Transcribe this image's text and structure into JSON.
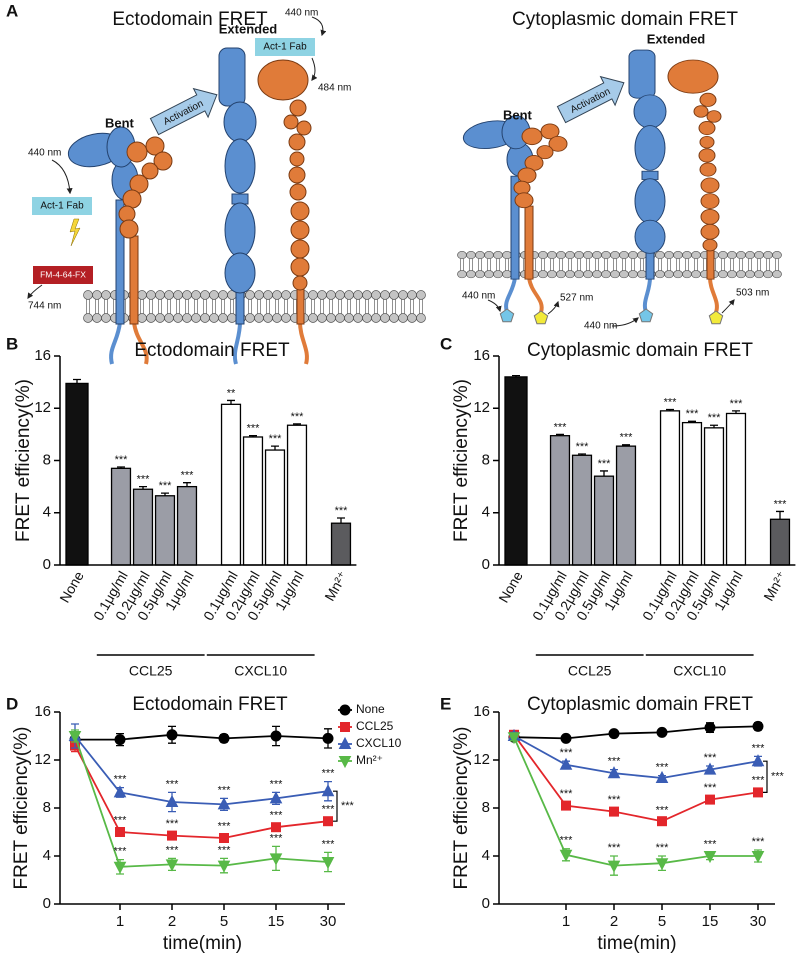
{
  "diagram": {
    "label": "A",
    "left": {
      "title": "Ectodomain FRET",
      "bent": "Bent",
      "extended": "Extended",
      "activation": "Activation",
      "excitation_bent": "440 nm",
      "fab_bent": "Act-1 Fab",
      "acceptor": "FM-4-64-FX",
      "emission_bent": "744 nm",
      "excitation_extended": "440 nm",
      "fab_extended": "Act-1 Fab",
      "emission_extended": "484 nm"
    },
    "right": {
      "title": "Cytoplasmic domain FRET",
      "bent": "Bent",
      "extended": "Extended",
      "activation": "Activation",
      "excitation_bent": "440 nm",
      "emission_bent": "527 nm",
      "excitation_extended": "440 nm",
      "emission_extended": "503 nm"
    }
  },
  "chart_data": [
    {
      "type": "bar",
      "panel": "B",
      "title": "Ectodomain FRET",
      "ylabel": "FRET efficiency(%)",
      "ylim": [
        0,
        16
      ],
      "yticks": [
        0,
        4,
        8,
        12,
        16
      ],
      "groups": [
        {
          "categories": [
            "None"
          ],
          "values": [
            13.9
          ],
          "errors": [
            0.3
          ],
          "color": "#111111"
        },
        {
          "name": "CCL25",
          "categories": [
            "0.1μg/ml",
            "0.2μg/ml",
            "0.5μg/ml",
            "1μg/ml"
          ],
          "values": [
            7.4,
            5.8,
            5.3,
            6.0
          ],
          "errors": [
            0.1,
            0.2,
            0.2,
            0.3
          ],
          "labels": [
            "***",
            "***",
            "***",
            "***"
          ],
          "color": "#9b9da6"
        },
        {
          "name": "CXCL10",
          "categories": [
            "0.1μg/ml",
            "0.2μg/ml",
            "0.5μg/ml",
            "1μg/ml"
          ],
          "values": [
            12.3,
            9.8,
            8.8,
            10.7
          ],
          "errors": [
            0.3,
            0.1,
            0.3,
            0.1
          ],
          "labels": [
            "**",
            "***",
            "***",
            "***"
          ],
          "color": "#ffffff"
        },
        {
          "categories": [
            "Mn²⁺"
          ],
          "values": [
            3.2
          ],
          "errors": [
            0.4
          ],
          "labels": [
            "***"
          ],
          "color": "#5b5b5e"
        }
      ]
    },
    {
      "type": "bar",
      "panel": "C",
      "title": "Cytoplasmic domain FRET",
      "ylabel": "FRET efficiency(%)",
      "ylim": [
        0,
        16
      ],
      "yticks": [
        0,
        4,
        8,
        12,
        16
      ],
      "groups": [
        {
          "categories": [
            "None"
          ],
          "values": [
            14.4
          ],
          "errors": [
            0.1
          ],
          "color": "#111111"
        },
        {
          "name": "CCL25",
          "categories": [
            "0.1μg/ml",
            "0.2μg/ml",
            "0.5μg/ml",
            "1μg/ml"
          ],
          "values": [
            9.9,
            8.4,
            6.8,
            9.1
          ],
          "errors": [
            0.1,
            0.1,
            0.4,
            0.1
          ],
          "labels": [
            "***",
            "***",
            "***",
            "***"
          ],
          "color": "#9b9da6"
        },
        {
          "name": "CXCL10",
          "categories": [
            "0.1μg/ml",
            "0.2μg/ml",
            "0.5μg/ml",
            "1μg/ml"
          ],
          "values": [
            11.8,
            10.9,
            10.5,
            11.6
          ],
          "errors": [
            0.1,
            0.1,
            0.2,
            0.2
          ],
          "labels": [
            "***",
            "***",
            "***",
            "***"
          ],
          "color": "#ffffff"
        },
        {
          "categories": [
            "Mn²⁺"
          ],
          "values": [
            3.5
          ],
          "errors": [
            0.6
          ],
          "labels": [
            "***"
          ],
          "color": "#5b5b5e"
        }
      ]
    },
    {
      "type": "line",
      "panel": "D",
      "title": "Ectodomain FRET",
      "ylabel": "FRET efficiency(%)",
      "xlabel": "time(min)",
      "categories": [
        null,
        "1",
        "2",
        "5",
        "15",
        "30"
      ],
      "ylim": [
        0,
        16
      ],
      "yticks": [
        0,
        4,
        8,
        12,
        16
      ],
      "legend": "top-right",
      "series": [
        {
          "name": "None",
          "color": "#000000",
          "marker": "circle",
          "values": [
            13.7,
            13.7,
            14.1,
            13.8,
            14.0,
            13.8
          ],
          "errors": [
            0.5,
            0.5,
            0.7,
            0.3,
            0.8,
            0.8
          ]
        },
        {
          "name": "CCL25",
          "color": "#e3262b",
          "marker": "square",
          "values": [
            13.2,
            6.0,
            5.7,
            5.5,
            6.4,
            6.9
          ],
          "errors": [
            0.5,
            0.3,
            0.3,
            0.3,
            0.3,
            0.3
          ],
          "labels": [
            null,
            "***",
            "***",
            "***",
            "***",
            "***"
          ]
        },
        {
          "name": "CXCL10",
          "color": "#3a5db5",
          "marker": "triangle-up",
          "values": [
            14.0,
            9.3,
            8.5,
            8.3,
            8.8,
            9.4
          ],
          "errors": [
            1.0,
            0.4,
            0.8,
            0.5,
            0.5,
            0.8
          ],
          "labels": [
            null,
            "***",
            "***",
            "***",
            "***",
            "***"
          ]
        },
        {
          "name": "Mn²⁺",
          "color": "#58b947",
          "marker": "triangle-down",
          "values": [
            14.0,
            3.1,
            3.3,
            3.2,
            3.8,
            3.5
          ],
          "errors": [
            0.5,
            0.6,
            0.5,
            0.6,
            1.0,
            0.8
          ],
          "labels": [
            null,
            "***",
            "***",
            "***",
            "***",
            "***"
          ]
        }
      ],
      "bracket": {
        "between": [
          "CXCL10",
          "CCL25"
        ],
        "label": "***"
      }
    },
    {
      "type": "line",
      "panel": "E",
      "title": "Cytoplasmic domain FRET",
      "ylabel": "FRET efficiency(%)",
      "xlabel": "time(min)",
      "categories": [
        null,
        "1",
        "2",
        "5",
        "15",
        "30"
      ],
      "ylim": [
        0,
        16
      ],
      "yticks": [
        0,
        4,
        8,
        12,
        16
      ],
      "series": [
        {
          "name": "None",
          "color": "#000000",
          "marker": "circle",
          "values": [
            13.9,
            13.8,
            14.2,
            14.3,
            14.7,
            14.8
          ],
          "errors": [
            0.2,
            0.2,
            0.2,
            0.2,
            0.4,
            0.3
          ]
        },
        {
          "name": "CCL25",
          "color": "#e3262b",
          "marker": "square",
          "values": [
            14.1,
            8.2,
            7.7,
            6.9,
            8.7,
            9.3
          ],
          "errors": [
            0.2,
            0.3,
            0.3,
            0.2,
            0.3,
            0.3
          ],
          "labels": [
            null,
            "***",
            "***",
            "***",
            "***",
            "***"
          ]
        },
        {
          "name": "CXCL10",
          "color": "#3a5db5",
          "marker": "triangle-up",
          "values": [
            14.0,
            11.6,
            10.9,
            10.5,
            11.2,
            11.9
          ],
          "errors": [
            0.3,
            0.3,
            0.3,
            0.2,
            0.3,
            0.4
          ],
          "labels": [
            null,
            "***",
            "***",
            "***",
            "***",
            "***"
          ]
        },
        {
          "name": "Mn²⁺",
          "color": "#58b947",
          "marker": "triangle-down",
          "values": [
            13.9,
            4.1,
            3.2,
            3.4,
            4.0,
            4.0
          ],
          "errors": [
            0.3,
            0.5,
            0.8,
            0.6,
            0.3,
            0.5
          ],
          "labels": [
            null,
            "***",
            "***",
            "***",
            "***",
            "***"
          ]
        }
      ],
      "bracket": {
        "between": [
          "CXCL10",
          "CCL25"
        ],
        "label": "***"
      }
    }
  ]
}
